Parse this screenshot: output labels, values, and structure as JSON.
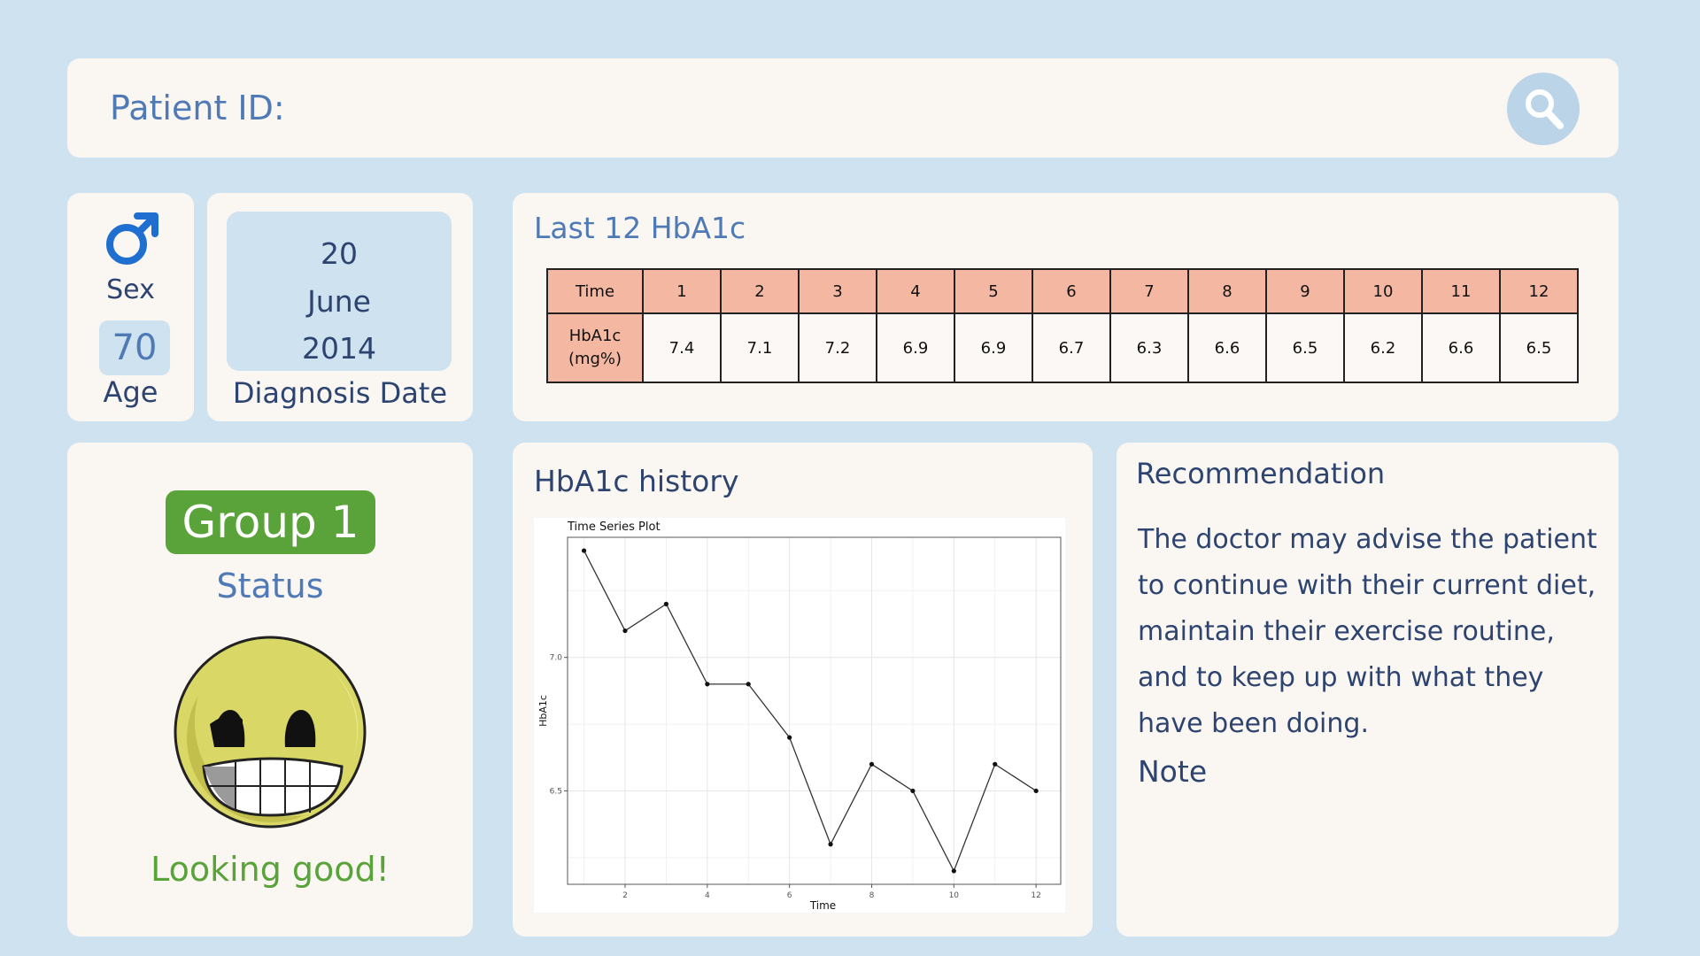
{
  "search": {
    "label": "Patient ID:",
    "icon": "search-icon"
  },
  "patient": {
    "sex_icon": "male-symbol-icon",
    "sex_label": "Sex",
    "age": "70",
    "age_label": "Age",
    "diagnosis_day": "20",
    "diagnosis_month": "June",
    "diagnosis_year": "2014",
    "diagnosis_label": "Diagnosis Date"
  },
  "table": {
    "title": "Last 12 HbA1c",
    "time_header": "Time",
    "value_header": "HbA1c (mg%)",
    "times": [
      "1",
      "2",
      "3",
      "4",
      "5",
      "6",
      "7",
      "8",
      "9",
      "10",
      "11",
      "12"
    ],
    "values": [
      "7.4",
      "7.1",
      "7.2",
      "6.9",
      "6.9",
      "6.7",
      "6.3",
      "6.6",
      "6.5",
      "6.2",
      "6.6",
      "6.5"
    ]
  },
  "status": {
    "group": "Group 1",
    "label": "Status",
    "icon": "grinning-smiley-icon",
    "message": "Looking good!"
  },
  "history": {
    "title": "HbA1c history"
  },
  "chart_data": {
    "type": "line",
    "title": "Time Series Plot",
    "xlabel": "Time",
    "ylabel": "HbA1c",
    "x": [
      1,
      2,
      3,
      4,
      5,
      6,
      7,
      8,
      9,
      10,
      11,
      12
    ],
    "values": [
      7.4,
      7.1,
      7.2,
      6.9,
      6.9,
      6.7,
      6.3,
      6.6,
      6.5,
      6.2,
      6.6,
      6.5
    ],
    "xlim": [
      0.6,
      12.6
    ],
    "ylim": [
      6.15,
      7.45
    ],
    "xticks": [
      2,
      4,
      6,
      8,
      10,
      12
    ],
    "yticks": [
      6.5,
      7.0
    ],
    "ytick_labels": [
      "6.5",
      "7.0"
    ],
    "grid": true
  },
  "recommendation": {
    "title": "Recommendation",
    "text": "The doctor may advise the patient to continue with their current diet, maintain their exercise routine,  and to keep up with what they have been doing.",
    "note_label": "Note"
  },
  "colors": {
    "background": "#cfe2f0",
    "card": "#faf6f2",
    "accent_blue": "#4f7ab5",
    "dark_blue": "#2d4470",
    "group_green": "#5aa33a",
    "table_header": "#f4b8a2"
  }
}
